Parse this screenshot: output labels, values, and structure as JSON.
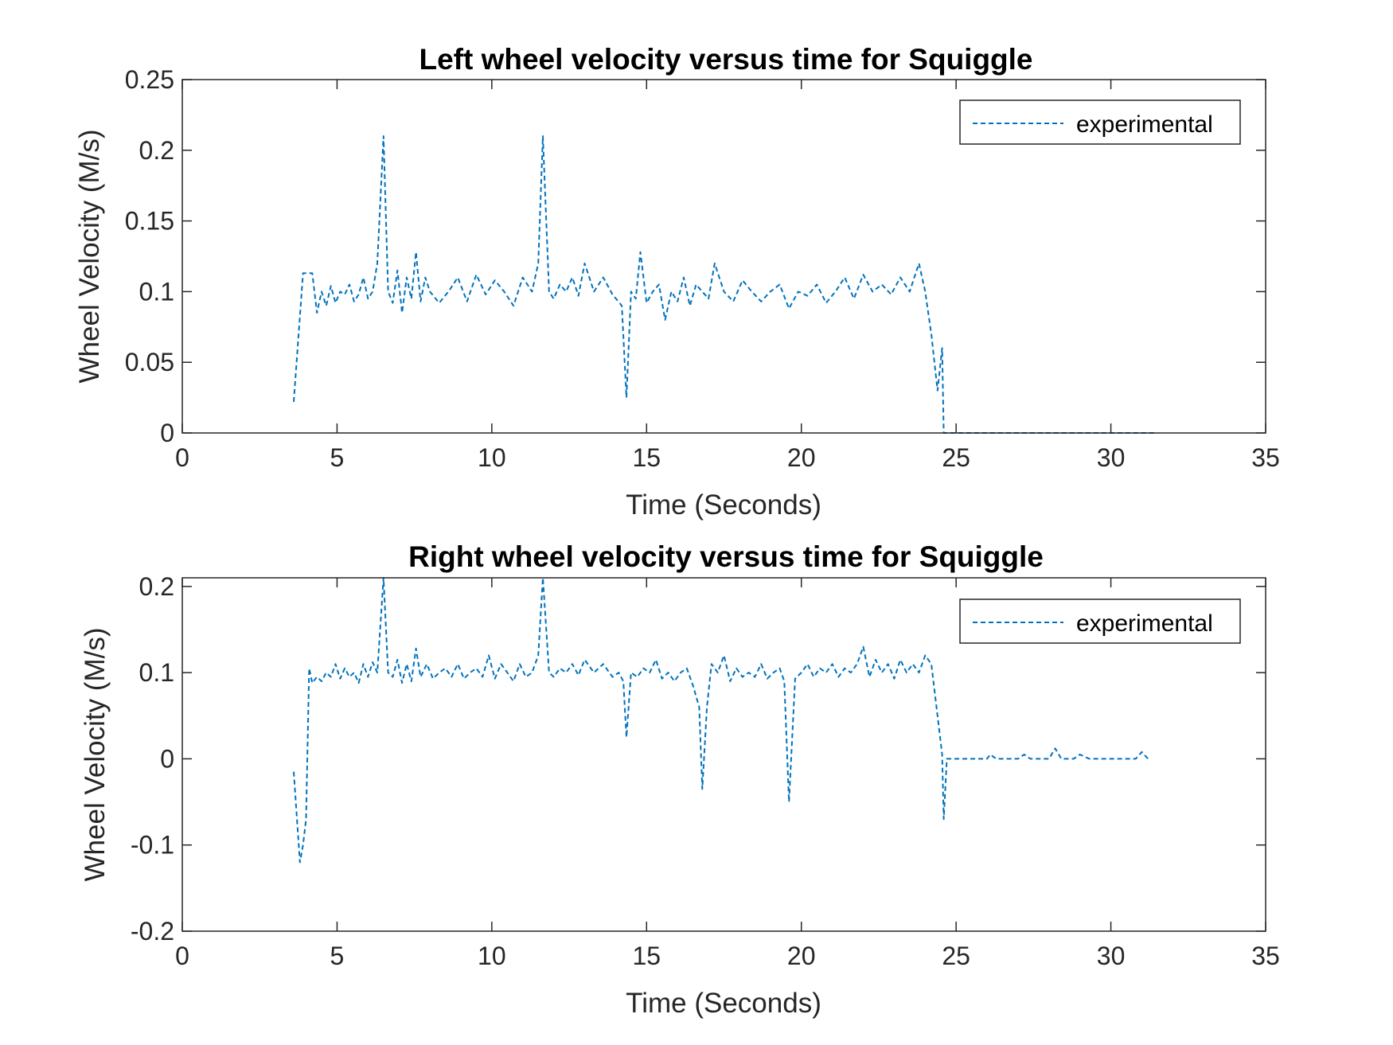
{
  "chart_data": [
    {
      "type": "line",
      "title": "Left wheel velocity versus time for Squiggle",
      "xlabel": "Time (Seconds)",
      "ylabel": "Wheel Velocity (M/s)",
      "xlim": [
        0,
        35
      ],
      "ylim": [
        0,
        0.25
      ],
      "xticks": [
        "0",
        "5",
        "10",
        "15",
        "20",
        "25",
        "30",
        "35"
      ],
      "yticks": [
        "0",
        "0.05",
        "0.1",
        "0.15",
        "0.2",
        "0.25"
      ],
      "grid": false,
      "legend_position": "top-right",
      "series": [
        {
          "name": "experimental",
          "color": "#0072BD",
          "line_style": "dashed",
          "x": [
            3.6,
            3.9,
            4.2,
            4.35,
            4.5,
            4.65,
            4.8,
            4.95,
            5.1,
            5.25,
            5.4,
            5.55,
            5.7,
            5.85,
            6.0,
            6.15,
            6.3,
            6.5,
            6.65,
            6.8,
            6.95,
            7.1,
            7.25,
            7.4,
            7.55,
            7.7,
            7.85,
            8.0,
            8.3,
            8.6,
            8.9,
            9.2,
            9.5,
            9.8,
            10.1,
            10.4,
            10.7,
            11.0,
            11.3,
            11.5,
            11.65,
            11.85,
            12.0,
            12.2,
            12.4,
            12.6,
            12.8,
            13.0,
            13.3,
            13.6,
            13.9,
            14.2,
            14.35,
            14.5,
            14.65,
            14.8,
            15.0,
            15.2,
            15.4,
            15.6,
            15.8,
            16.0,
            16.2,
            16.4,
            16.6,
            16.8,
            17.0,
            17.2,
            17.5,
            17.8,
            18.1,
            18.4,
            18.7,
            19.0,
            19.3,
            19.6,
            19.9,
            20.2,
            20.5,
            20.8,
            21.1,
            21.4,
            21.7,
            22.0,
            22.3,
            22.6,
            22.9,
            23.2,
            23.5,
            23.8,
            24.0,
            24.2,
            24.4,
            24.55,
            24.6,
            24.65,
            25.0,
            26.0,
            27.0,
            28.0,
            29.0,
            30.0,
            31.4
          ],
          "y": [
            0.022,
            0.113,
            0.113,
            0.085,
            0.1,
            0.09,
            0.104,
            0.092,
            0.1,
            0.098,
            0.105,
            0.093,
            0.098,
            0.11,
            0.095,
            0.1,
            0.12,
            0.21,
            0.1,
            0.092,
            0.115,
            0.085,
            0.11,
            0.095,
            0.128,
            0.093,
            0.11,
            0.1,
            0.092,
            0.1,
            0.11,
            0.093,
            0.112,
            0.098,
            0.108,
            0.1,
            0.09,
            0.11,
            0.1,
            0.12,
            0.21,
            0.1,
            0.095,
            0.105,
            0.1,
            0.11,
            0.097,
            0.12,
            0.1,
            0.11,
            0.098,
            0.09,
            0.025,
            0.1,
            0.095,
            0.128,
            0.092,
            0.1,
            0.105,
            0.08,
            0.1,
            0.093,
            0.11,
            0.09,
            0.105,
            0.1,
            0.095,
            0.12,
            0.1,
            0.093,
            0.108,
            0.1,
            0.093,
            0.1,
            0.105,
            0.088,
            0.1,
            0.097,
            0.105,
            0.092,
            0.1,
            0.11,
            0.095,
            0.112,
            0.1,
            0.105,
            0.098,
            0.11,
            0.1,
            0.12,
            0.1,
            0.07,
            0.03,
            0.06,
            0.0,
            0.0,
            0.0,
            0.0,
            0.0,
            0.0,
            0.0,
            0.0,
            0.0
          ]
        }
      ]
    },
    {
      "type": "line",
      "title": "Right wheel velocity versus time for Squiggle",
      "xlabel": "Time (Seconds)",
      "ylabel": "Wheel Velocity (M/s)",
      "xlim": [
        0,
        35
      ],
      "ylim": [
        -0.2,
        0.21
      ],
      "xticks": [
        "0",
        "5",
        "10",
        "15",
        "20",
        "25",
        "30",
        "35"
      ],
      "yticks": [
        "-0.2",
        "-0.1",
        "0",
        "0.1",
        "0.2"
      ],
      "grid": false,
      "legend_position": "top-right",
      "series": [
        {
          "name": "experimental",
          "color": "#0072BD",
          "line_style": "dashed",
          "x": [
            3.6,
            3.8,
            3.9,
            4.0,
            4.1,
            4.2,
            4.35,
            4.5,
            4.65,
            4.8,
            4.95,
            5.1,
            5.25,
            5.4,
            5.55,
            5.7,
            5.85,
            6.0,
            6.15,
            6.3,
            6.5,
            6.65,
            6.8,
            6.95,
            7.1,
            7.25,
            7.4,
            7.55,
            7.7,
            7.9,
            8.1,
            8.3,
            8.5,
            8.7,
            8.9,
            9.1,
            9.3,
            9.5,
            9.7,
            9.9,
            10.1,
            10.3,
            10.5,
            10.7,
            10.9,
            11.1,
            11.3,
            11.5,
            11.65,
            11.85,
            12.0,
            12.2,
            12.4,
            12.6,
            12.8,
            13.0,
            13.3,
            13.6,
            13.9,
            14.1,
            14.25,
            14.35,
            14.5,
            14.7,
            14.9,
            15.1,
            15.3,
            15.5,
            15.7,
            15.9,
            16.1,
            16.3,
            16.5,
            16.7,
            16.8,
            16.95,
            17.1,
            17.3,
            17.5,
            17.7,
            17.9,
            18.1,
            18.3,
            18.5,
            18.7,
            18.9,
            19.1,
            19.3,
            19.45,
            19.6,
            19.8,
            20.0,
            20.2,
            20.4,
            20.6,
            20.8,
            21.0,
            21.2,
            21.4,
            21.6,
            21.8,
            22.0,
            22.2,
            22.4,
            22.6,
            22.8,
            23.0,
            23.2,
            23.4,
            23.6,
            23.8,
            24.0,
            24.2,
            24.4,
            24.55,
            24.6,
            24.7,
            25.0,
            26.0,
            26.1,
            26.3,
            27.0,
            27.2,
            27.4,
            28.0,
            28.2,
            28.4,
            28.8,
            29.0,
            29.3,
            30.0,
            30.8,
            31.0,
            31.2
          ],
          "y": [
            -0.015,
            -0.12,
            -0.1,
            -0.07,
            0.105,
            0.088,
            0.095,
            0.09,
            0.1,
            0.095,
            0.11,
            0.093,
            0.105,
            0.095,
            0.1,
            0.088,
            0.11,
            0.095,
            0.112,
            0.1,
            0.21,
            0.1,
            0.095,
            0.115,
            0.088,
            0.11,
            0.09,
            0.128,
            0.095,
            0.11,
            0.093,
            0.1,
            0.105,
            0.095,
            0.11,
            0.093,
            0.1,
            0.105,
            0.095,
            0.12,
            0.093,
            0.11,
            0.1,
            0.09,
            0.11,
            0.095,
            0.1,
            0.12,
            0.21,
            0.1,
            0.095,
            0.105,
            0.1,
            0.11,
            0.097,
            0.115,
            0.1,
            0.11,
            0.095,
            0.1,
            0.09,
            0.025,
            0.1,
            0.095,
            0.105,
            0.1,
            0.115,
            0.093,
            0.1,
            0.09,
            0.1,
            0.105,
            0.085,
            0.06,
            -0.035,
            0.06,
            0.11,
            0.1,
            0.12,
            0.09,
            0.105,
            0.095,
            0.1,
            0.095,
            0.11,
            0.093,
            0.1,
            0.105,
            0.09,
            -0.05,
            0.093,
            0.1,
            0.11,
            0.095,
            0.105,
            0.1,
            0.11,
            0.095,
            0.105,
            0.1,
            0.11,
            0.13,
            0.095,
            0.115,
            0.1,
            0.11,
            0.093,
            0.115,
            0.1,
            0.11,
            0.1,
            0.12,
            0.11,
            0.05,
            0.005,
            -0.07,
            0.0,
            0.0,
            0.0,
            0.005,
            0.0,
            0.0,
            0.005,
            0.0,
            0.0,
            0.012,
            0.0,
            0.0,
            0.005,
            0.0,
            0.0,
            0.0,
            0.008,
            0.0
          ]
        }
      ]
    }
  ]
}
